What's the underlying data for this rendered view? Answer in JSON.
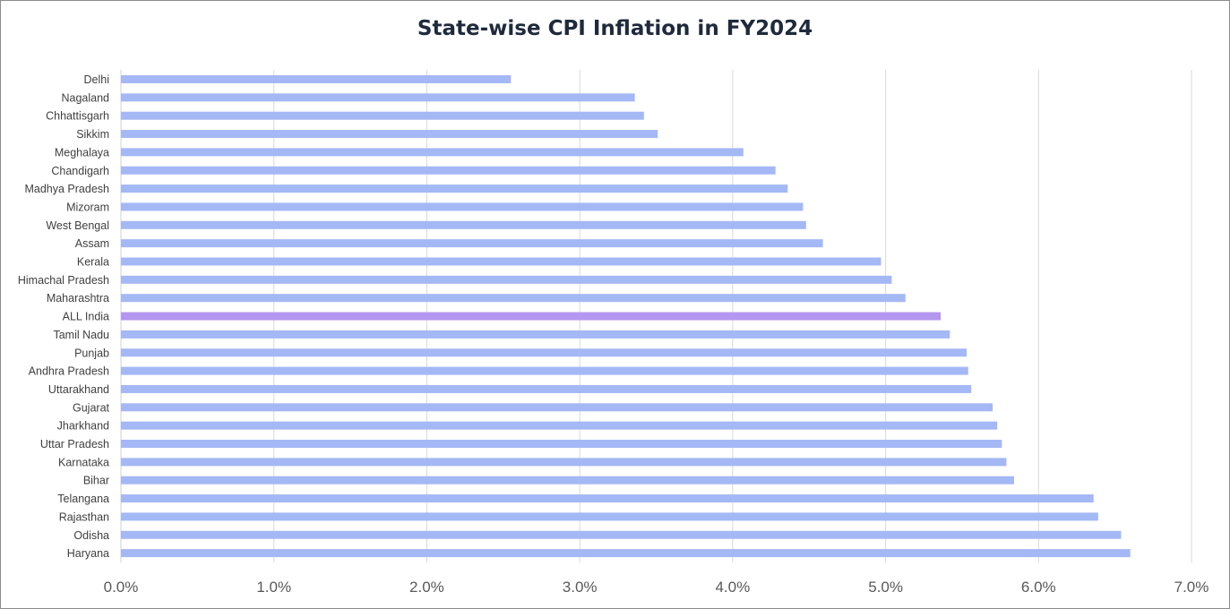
{
  "chart_data": {
    "type": "bar",
    "orientation": "horizontal",
    "title": "State-wise CPI Inflation in FY2024",
    "xlabel": "",
    "ylabel": "",
    "xlim": [
      0,
      7
    ],
    "x_tick_values": [
      0,
      1,
      2,
      3,
      4,
      5,
      6,
      7
    ],
    "x_tick_labels": [
      "0.0%",
      "1.0%",
      "2.0%",
      "3.0%",
      "4.0%",
      "5.0%",
      "6.0%",
      "7.0%"
    ],
    "grid": "vertical",
    "legend": "none",
    "colors": {
      "bar": "#a4b8f5",
      "highlight": "#b497f0",
      "grid": "#d9d9d9"
    },
    "highlight_category": "ALL India",
    "categories": [
      "Delhi",
      "Nagaland",
      "Chhattisgarh",
      "Sikkim",
      "Meghalaya",
      "Chandigarh",
      "Madhya Pradesh",
      "Mizoram",
      "West Bengal",
      "Assam",
      "Kerala",
      "Himachal Pradesh",
      "Maharashtra",
      "ALL India",
      "Tamil Nadu",
      "Punjab",
      "Andhra Pradesh",
      "Uttarakhand",
      "Gujarat",
      "Jharkhand",
      "Uttar Pradesh",
      "Karnataka",
      "Bihar",
      "Telangana",
      "Rajasthan",
      "Odisha",
      "Haryana"
    ],
    "values": [
      2.55,
      3.36,
      3.42,
      3.51,
      4.07,
      4.28,
      4.36,
      4.46,
      4.48,
      4.59,
      4.97,
      5.04,
      5.13,
      5.36,
      5.42,
      5.53,
      5.54,
      5.56,
      5.7,
      5.73,
      5.76,
      5.79,
      5.84,
      6.36,
      6.39,
      6.54,
      6.6
    ]
  }
}
